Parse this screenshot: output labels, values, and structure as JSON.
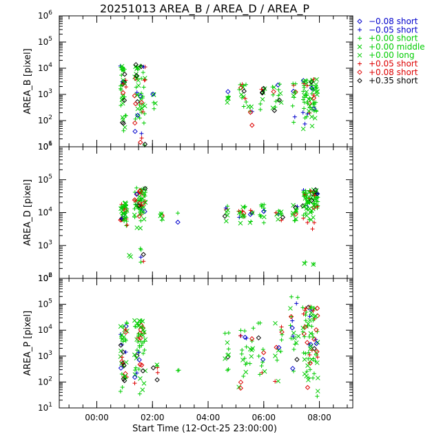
{
  "chart_data": {
    "type": "scatter",
    "title": "20251013 AREA_B / AREA_D / AREA_P",
    "xlabel": "Start Time (12-Oct-25 23:00:00)",
    "x_ticks": [
      "00:00",
      "02:00",
      "04:00",
      "06:00",
      "08:00"
    ],
    "x_tick_hours": [
      1,
      3,
      5,
      7,
      9
    ],
    "x_range_hours": [
      -0.35,
      10.2
    ],
    "legend": {
      "placement": "right-outside",
      "entries": [
        {
          "label": "−0.08 short",
          "color": "#0000cc",
          "symbol": "diamond"
        },
        {
          "label": "−0.05 short",
          "color": "#0000cc",
          "symbol": "plus"
        },
        {
          "label": "+0.00 short",
          "color": "#00cc00",
          "symbol": "plus"
        },
        {
          "label": "+0.00 middle",
          "color": "#00cc00",
          "symbol": "cross"
        },
        {
          "label": "+0.00 long",
          "color": "#00cc00",
          "symbol": "cross"
        },
        {
          "label": "+0.05 short",
          "color": "#dd0000",
          "symbol": "plus"
        },
        {
          "label": "+0.08 short",
          "color": "#dd0000",
          "symbol": "diamond"
        },
        {
          "label": "+0.35 short",
          "color": "#000000",
          "symbol": "diamond"
        }
      ]
    },
    "panels": [
      {
        "name": "AREA_B",
        "ylabel": "AREA_B [pixel]",
        "yscale": "log",
        "ylim_exp": [
          1,
          6
        ],
        "ytick_exps": [
          1,
          2,
          3,
          4,
          5,
          6
        ],
        "clusters": [
          {
            "x": [
              1.85,
              2.05
            ],
            "y": [
              1.0,
              4.1
            ],
            "n": 42
          },
          {
            "x": [
              2.35,
              2.75
            ],
            "y": [
              1.0,
              4.15
            ],
            "n": 60
          },
          {
            "x": [
              3.0,
              3.2
            ],
            "y": [
              2.0,
              3.1
            ],
            "n": 6
          },
          {
            "x": [
              5.6,
              5.75
            ],
            "y": [
              2.6,
              3.2
            ],
            "n": 6
          },
          {
            "x": [
              6.1,
              6.4
            ],
            "y": [
              2.5,
              3.4
            ],
            "n": 14
          },
          {
            "x": [
              6.45,
              6.6
            ],
            "y": [
              1.0,
              2.6
            ],
            "n": 6
          },
          {
            "x": [
              6.8,
              7.05
            ],
            "y": [
              2.3,
              3.4
            ],
            "n": 10
          },
          {
            "x": [
              7.3,
              7.45
            ],
            "y": [
              1.1,
              3.3
            ],
            "n": 8
          },
          {
            "x": [
              7.5,
              7.7
            ],
            "y": [
              2.5,
              3.4
            ],
            "n": 8
          },
          {
            "x": [
              8.0,
              8.2
            ],
            "y": [
              1.8,
              3.5
            ],
            "n": 12
          },
          {
            "x": [
              8.4,
              8.95
            ],
            "y": [
              1.6,
              3.6
            ],
            "n": 70
          }
        ]
      },
      {
        "name": "AREA_D",
        "ylabel": "AREA_D [pixel]",
        "yscale": "log",
        "ylim_exp": [
          2,
          6
        ],
        "ytick_exps": [
          2,
          3,
          4,
          5,
          6
        ],
        "clusters": [
          {
            "x": [
              1.85,
              2.1
            ],
            "y": [
              3.6,
              4.3
            ],
            "n": 40
          },
          {
            "x": [
              2.15,
              2.25
            ],
            "y": [
              2.4,
              3.0
            ],
            "n": 2
          },
          {
            "x": [
              2.35,
              2.75
            ],
            "y": [
              3.5,
              4.75
            ],
            "n": 70
          },
          {
            "x": [
              2.55,
              2.7
            ],
            "y": [
              2.1,
              3.1
            ],
            "n": 6
          },
          {
            "x": [
              3.25,
              3.45
            ],
            "y": [
              3.6,
              4.1
            ],
            "n": 6
          },
          {
            "x": [
              3.9,
              3.95
            ],
            "y": [
              3.6,
              4.0
            ],
            "n": 2
          },
          {
            "x": [
              5.6,
              5.75
            ],
            "y": [
              3.7,
              4.2
            ],
            "n": 8
          },
          {
            "x": [
              6.1,
              6.4
            ],
            "y": [
              3.6,
              4.2
            ],
            "n": 16
          },
          {
            "x": [
              6.5,
              6.6
            ],
            "y": [
              3.6,
              4.1
            ],
            "n": 6
          },
          {
            "x": [
              6.8,
              7.05
            ],
            "y": [
              3.6,
              4.25
            ],
            "n": 12
          },
          {
            "x": [
              7.4,
              7.7
            ],
            "y": [
              3.6,
              4.1
            ],
            "n": 12
          },
          {
            "x": [
              8.0,
              8.25
            ],
            "y": [
              3.6,
              4.3
            ],
            "n": 14
          },
          {
            "x": [
              8.4,
              8.95
            ],
            "y": [
              3.5,
              4.7
            ],
            "n": 80
          },
          {
            "x": [
              8.45,
              8.55
            ],
            "y": [
              2.4,
              2.6
            ],
            "n": 2
          },
          {
            "x": [
              8.75,
              8.85
            ],
            "y": [
              2.3,
              2.5
            ],
            "n": 2
          }
        ]
      },
      {
        "name": "AREA_P",
        "ylabel": "AREA_P [pixel]",
        "yscale": "log",
        "ylim_exp": [
          1,
          6
        ],
        "ytick_exps": [
          1,
          2,
          3,
          4,
          5,
          6
        ],
        "clusters": [
          {
            "x": [
              1.85,
              2.1
            ],
            "y": [
              1.2,
              4.3
            ],
            "n": 44
          },
          {
            "x": [
              2.35,
              2.75
            ],
            "y": [
              1.1,
              4.4
            ],
            "n": 60
          },
          {
            "x": [
              3.0,
              3.2
            ],
            "y": [
              2.0,
              2.9
            ],
            "n": 6
          },
          {
            "x": [
              3.9,
              3.95
            ],
            "y": [
              2.3,
              2.5
            ],
            "n": 2
          },
          {
            "x": [
              5.6,
              5.75
            ],
            "y": [
              2.0,
              3.9
            ],
            "n": 10
          },
          {
            "x": [
              6.1,
              6.4
            ],
            "y": [
              1.2,
              4.0
            ],
            "n": 18
          },
          {
            "x": [
              6.5,
              6.65
            ],
            "y": [
              2.3,
              4.1
            ],
            "n": 8
          },
          {
            "x": [
              6.8,
              7.05
            ],
            "y": [
              1.5,
              4.3
            ],
            "n": 12
          },
          {
            "x": [
              7.4,
              7.7
            ],
            "y": [
              2.0,
              4.4
            ],
            "n": 14
          },
          {
            "x": [
              7.95,
              8.25
            ],
            "y": [
              2.0,
              5.3
            ],
            "n": 20
          },
          {
            "x": [
              8.4,
              8.95
            ],
            "y": [
              1.3,
              4.9
            ],
            "n": 80
          }
        ]
      }
    ]
  }
}
